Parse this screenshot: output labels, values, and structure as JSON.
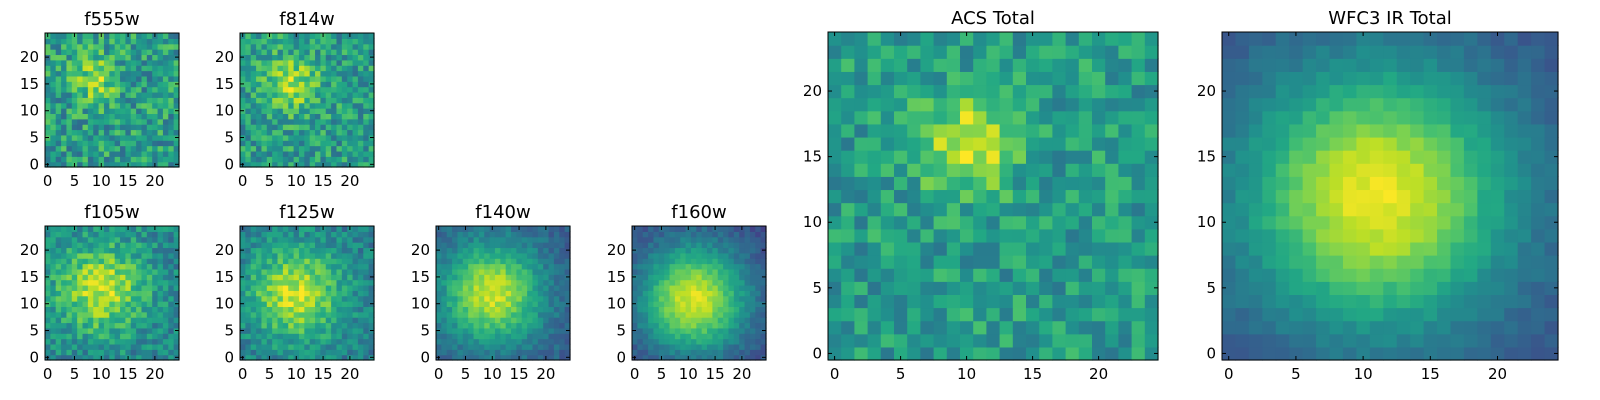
{
  "chart_data": [
    {
      "type": "heatmap",
      "title": "f555w",
      "grid_size": 25,
      "xlim": [
        0,
        24
      ],
      "ylim": [
        0,
        24
      ],
      "x_ticks": [
        0,
        5,
        10,
        15,
        20
      ],
      "y_ticks": [
        0,
        5,
        10,
        15,
        20
      ],
      "colormap": "viridis",
      "peak": [
        9,
        16
      ],
      "sigma": 3.0,
      "base": 0.55,
      "amp": 0.3,
      "noise": 0.42,
      "seed": 11
    },
    {
      "type": "heatmap",
      "title": "f814w",
      "grid_size": 25,
      "xlim": [
        0,
        24
      ],
      "ylim": [
        0,
        24
      ],
      "x_ticks": [
        0,
        5,
        10,
        15,
        20
      ],
      "y_ticks": [
        0,
        5,
        10,
        15,
        20
      ],
      "colormap": "viridis",
      "peak": [
        9,
        15
      ],
      "sigma": 3.5,
      "base": 0.55,
      "amp": 0.35,
      "noise": 0.38,
      "seed": 23
    },
    {
      "type": "heatmap",
      "title": "f105w",
      "grid_size": 25,
      "xlim": [
        0,
        24
      ],
      "ylim": [
        0,
        24
      ],
      "x_ticks": [
        0,
        5,
        10,
        15,
        20
      ],
      "y_ticks": [
        0,
        5,
        10,
        15,
        20
      ],
      "colormap": "viridis",
      "peak": [
        10,
        13
      ],
      "sigma": 6.0,
      "base": 0.45,
      "amp": 0.45,
      "noise": 0.3,
      "seed": 37
    },
    {
      "type": "heatmap",
      "title": "f125w",
      "grid_size": 25,
      "xlim": [
        0,
        24
      ],
      "ylim": [
        0,
        24
      ],
      "x_ticks": [
        0,
        5,
        10,
        15,
        20
      ],
      "y_ticks": [
        0,
        5,
        10,
        15,
        20
      ],
      "colormap": "viridis",
      "peak": [
        10,
        12
      ],
      "sigma": 6.0,
      "base": 0.42,
      "amp": 0.5,
      "noise": 0.26,
      "seed": 41
    },
    {
      "type": "heatmap",
      "title": "f140w",
      "grid_size": 25,
      "xlim": [
        0,
        24
      ],
      "ylim": [
        0,
        24
      ],
      "x_ticks": [
        0,
        5,
        10,
        15,
        20
      ],
      "y_ticks": [
        0,
        5,
        10,
        15,
        20
      ],
      "colormap": "viridis",
      "peak": [
        10,
        12
      ],
      "sigma": 6.5,
      "base": 0.3,
      "amp": 0.62,
      "noise": 0.16,
      "seed": 53
    },
    {
      "type": "heatmap",
      "title": "f160w",
      "grid_size": 25,
      "xlim": [
        0,
        24
      ],
      "ylim": [
        0,
        24
      ],
      "x_ticks": [
        0,
        5,
        10,
        15,
        20
      ],
      "y_ticks": [
        0,
        5,
        10,
        15,
        20
      ],
      "colormap": "viridis",
      "peak": [
        11,
        11
      ],
      "sigma": 7.0,
      "base": 0.22,
      "amp": 0.72,
      "noise": 0.12,
      "seed": 67
    },
    {
      "type": "heatmap",
      "title": "ACS Total",
      "grid_size": 25,
      "xlim": [
        0,
        24
      ],
      "ylim": [
        0,
        24
      ],
      "x_ticks": [
        0,
        5,
        10,
        15,
        20
      ],
      "y_ticks": [
        0,
        5,
        10,
        15,
        20
      ],
      "colormap": "viridis",
      "peak": [
        10,
        16
      ],
      "sigma": 2.5,
      "base": 0.55,
      "amp": 0.4,
      "noise": 0.32,
      "seed": 79
    },
    {
      "type": "heatmap",
      "title": "WFC3 IR Total",
      "grid_size": 25,
      "xlim": [
        0,
        24
      ],
      "ylim": [
        0,
        24
      ],
      "x_ticks": [
        0,
        5,
        10,
        15,
        20
      ],
      "y_ticks": [
        0,
        5,
        10,
        15,
        20
      ],
      "colormap": "viridis",
      "peak": [
        11,
        12
      ],
      "sigma": 7.0,
      "base": 0.25,
      "amp": 0.72,
      "noise": 0.08,
      "seed": 97
    }
  ]
}
